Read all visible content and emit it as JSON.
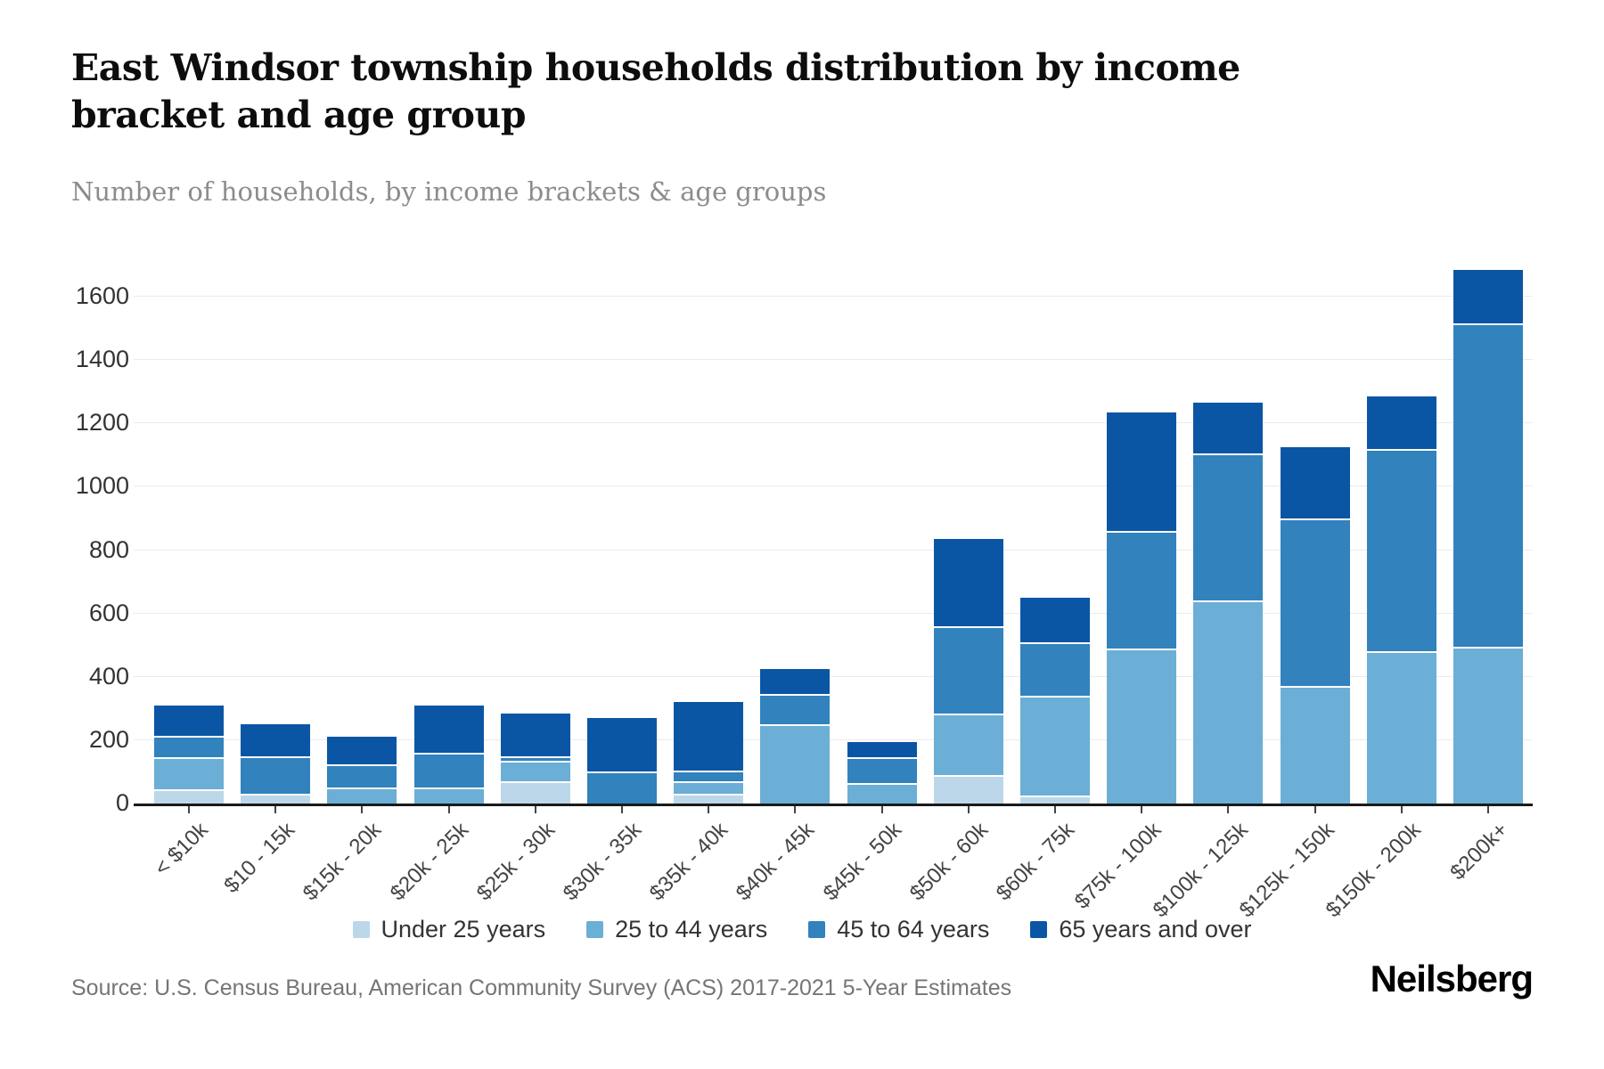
{
  "header": {
    "title": "East Windsor township households distribution by income bracket and age group",
    "subtitle": "Number of households, by income brackets & age groups"
  },
  "chart_data": {
    "type": "bar",
    "stacked": true,
    "title": "East Windsor township households distribution by income bracket and age group",
    "xlabel": "",
    "ylabel": "Number of households",
    "ylim": [
      0,
      1600
    ],
    "yticks": [
      0,
      200,
      400,
      600,
      800,
      1000,
      1200,
      1400,
      1600
    ],
    "grid": "horizontal",
    "legend_position": "bottom",
    "categories": [
      "< $10k",
      "$10 - 15k",
      "$15k - 20k",
      "$20k - 25k",
      "$25k - 30k",
      "$30k - 35k",
      "$35k - 40k",
      "$40k - 45k",
      "$45k - 50k",
      "$50k - 60k",
      "$60k - 75k",
      "$75k - 100k",
      "$100k - 125k",
      "$125k - 150k",
      "$150k - 200k",
      "$200k+"
    ],
    "series": [
      {
        "name": "Under 25 years",
        "color": "#bdd7ea",
        "values": [
          45,
          30,
          0,
          0,
          70,
          0,
          30,
          0,
          0,
          90,
          25,
          0,
          0,
          0,
          0,
          0
        ]
      },
      {
        "name": "25 to 44 years",
        "color": "#6baed6",
        "values": [
          100,
          0,
          50,
          50,
          65,
          0,
          40,
          250,
          65,
          195,
          315,
          490,
          640,
          370,
          480,
          495
        ]
      },
      {
        "name": "45 to 64 years",
        "color": "#3182bd",
        "values": [
          70,
          120,
          75,
          110,
          15,
          100,
          35,
          95,
          80,
          275,
          170,
          370,
          465,
          530,
          640,
          1020
        ]
      },
      {
        "name": "65 years and over",
        "color": "#0b56a4",
        "values": [
          95,
          100,
          85,
          150,
          135,
          170,
          215,
          80,
          50,
          275,
          140,
          375,
          160,
          225,
          165,
          170
        ]
      }
    ],
    "totals": [
      310,
      250,
      210,
      310,
      285,
      270,
      320,
      425,
      195,
      835,
      650,
      1235,
      1265,
      1125,
      1285,
      1685
    ]
  },
  "footer": {
    "source": "Source: U.S. Census Bureau, American Community Survey (ACS) 2017-2021 5-Year Estimates",
    "brand": "Neilsberg"
  }
}
